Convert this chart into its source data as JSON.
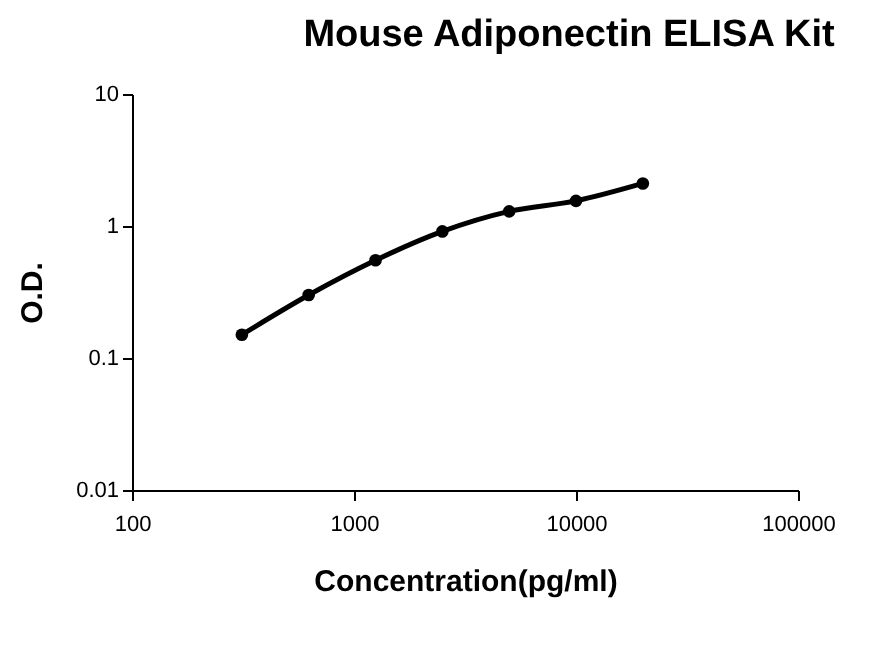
{
  "chart_data": {
    "type": "line",
    "title": "Mouse Adiponectin ELISA Kit",
    "xlabel": "Concentration(pg/ml)",
    "ylabel": "O.D.",
    "log": "xy",
    "marker": "circle",
    "line_style": "solid",
    "grid": false,
    "legend": false,
    "x": [
      312.5,
      625,
      1250,
      2500,
      5000,
      10000,
      20000
    ],
    "series": [
      {
        "color": "#000000",
        "values": [
          0.15,
          0.3,
          0.55,
          0.91,
          1.29,
          1.55,
          2.1
        ]
      }
    ],
    "xlim": [
      100,
      100000
    ],
    "xticks": [
      100,
      1000,
      10000,
      100000
    ],
    "ylim": [
      0.01,
      10
    ],
    "yticks": [
      0.01,
      0.1,
      1,
      10
    ]
  }
}
